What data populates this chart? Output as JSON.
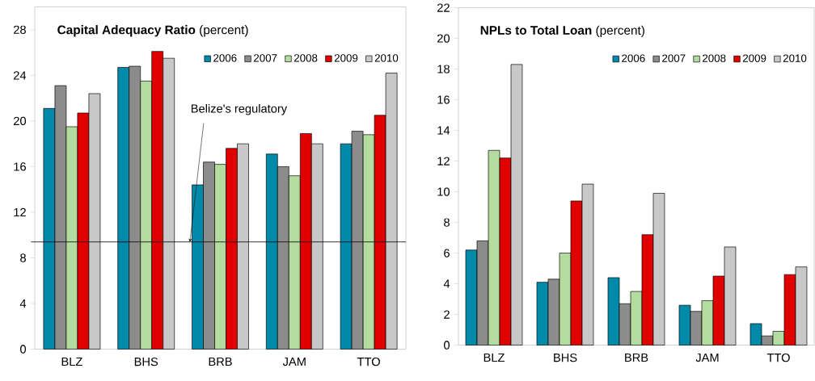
{
  "chart_data": [
    {
      "type": "bar",
      "title": "**Capital Adequacy Ratio** (percent)",
      "categories": [
        "BLZ",
        "BHS",
        "BRB",
        "JAM",
        "TTO"
      ],
      "series": [
        {
          "name": "2006",
          "color": "#0089a8",
          "values": [
            21.1,
            24.7,
            14.4,
            17.1,
            18.0
          ]
        },
        {
          "name": "2007",
          "color": "#8c8c8c",
          "values": [
            23.1,
            24.8,
            16.4,
            16.0,
            19.1
          ]
        },
        {
          "name": "2008",
          "color": "#b5dca0",
          "values": [
            19.5,
            23.5,
            16.2,
            15.2,
            18.8
          ]
        },
        {
          "name": "2009",
          "color": "#e00000",
          "values": [
            20.7,
            26.1,
            17.6,
            18.9,
            20.5
          ]
        },
        {
          "name": "2010",
          "color": "#c8c8c8",
          "values": [
            22.4,
            25.5,
            18.0,
            18.0,
            24.2
          ]
        }
      ],
      "ylim": [
        0,
        30
      ],
      "yticks": [
        0,
        4,
        8,
        12,
        16,
        20,
        24,
        28
      ],
      "legend": "top right",
      "ref_lines": [
        {
          "axis": "y",
          "value": 9.4,
          "label": "Belize's regulatory"
        }
      ]
    },
    {
      "type": "bar",
      "title": "**NPLs to Total Loan**  (percent)",
      "categories": [
        "BLZ",
        "BHS",
        "BRB",
        "JAM",
        "TTO"
      ],
      "series": [
        {
          "name": "2006",
          "color": "#0089a8",
          "values": [
            6.2,
            4.1,
            4.4,
            2.6,
            1.4
          ]
        },
        {
          "name": "2007",
          "color": "#8c8c8c",
          "values": [
            6.8,
            4.3,
            2.7,
            2.2,
            0.6
          ]
        },
        {
          "name": "2008",
          "color": "#b5dca0",
          "values": [
            12.7,
            6.0,
            3.5,
            2.9,
            0.9
          ]
        },
        {
          "name": "2009",
          "color": "#e00000",
          "values": [
            12.2,
            9.4,
            7.2,
            4.5,
            4.6
          ]
        },
        {
          "name": "2010",
          "color": "#c8c8c8",
          "values": [
            18.3,
            10.5,
            9.9,
            6.4,
            5.1
          ]
        }
      ],
      "ylim": [
        0,
        22
      ],
      "yticks": [
        0,
        2,
        4,
        6,
        8,
        10,
        12,
        14,
        16,
        18,
        20,
        22
      ],
      "legend": "top right"
    }
  ]
}
